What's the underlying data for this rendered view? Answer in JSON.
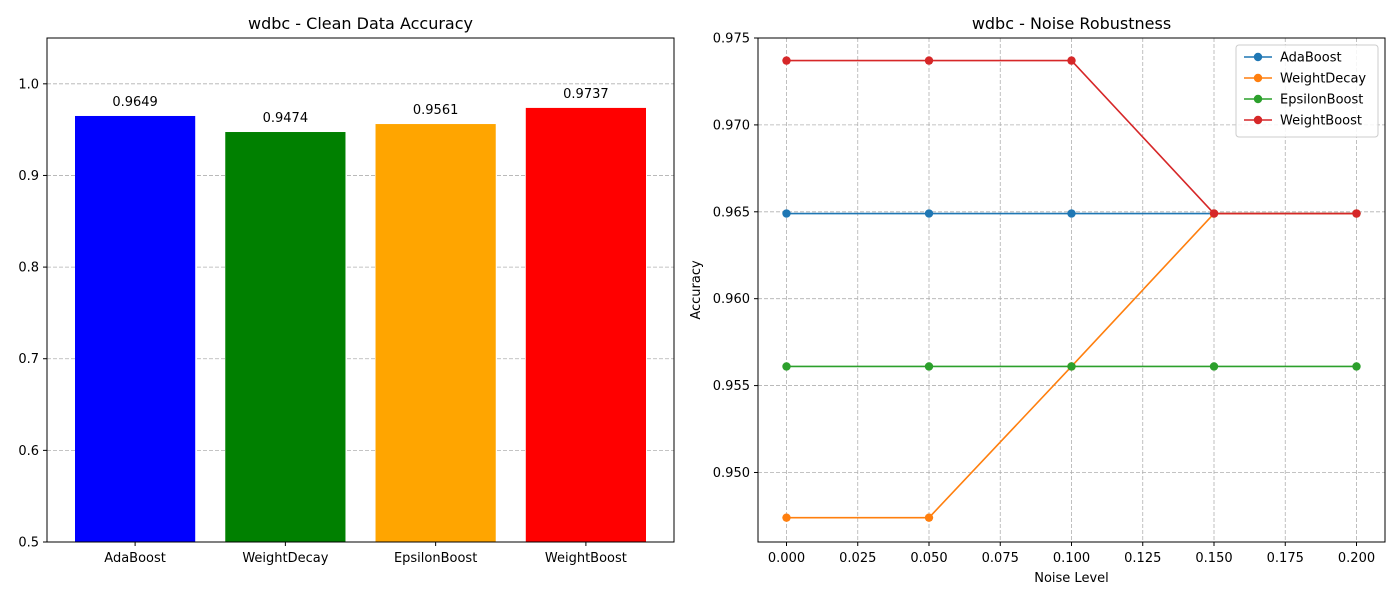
{
  "chart_data": [
    {
      "type": "bar",
      "title": "wdbc - Clean Data Accuracy",
      "xlabel": "",
      "ylabel": "",
      "categories": [
        "AdaBoost",
        "WeightDecay",
        "EpsilonBoost",
        "WeightBoost"
      ],
      "values": [
        0.9649,
        0.9474,
        0.9561,
        0.9737
      ],
      "value_labels": [
        "0.9649",
        "0.9474",
        "0.9561",
        "0.9737"
      ],
      "colors": [
        "#0000ff",
        "#008000",
        "#ffa500",
        "#ff0000"
      ],
      "ylim": [
        0.5,
        1.05
      ],
      "yticks": [
        0.5,
        0.6,
        0.7,
        0.8,
        0.9,
        1.0
      ],
      "ytick_labels": [
        "0.5",
        "0.6",
        "0.7",
        "0.8",
        "0.9",
        "1.0"
      ],
      "grid": "y-dashed"
    },
    {
      "type": "line",
      "title": "wdbc - Noise Robustness",
      "xlabel": "Noise Level",
      "ylabel": "Accuracy",
      "x": [
        0.0,
        0.05,
        0.1,
        0.15,
        0.2
      ],
      "series": [
        {
          "name": "AdaBoost",
          "color": "#1f77b4",
          "values": [
            0.9649,
            0.9649,
            0.9649,
            0.9649,
            0.9649
          ]
        },
        {
          "name": "WeightDecay",
          "color": "#ff7f0e",
          "values": [
            0.9474,
            0.9474,
            0.9561,
            0.9649,
            0.9649
          ]
        },
        {
          "name": "EpsilonBoost",
          "color": "#2ca02c",
          "values": [
            0.9561,
            0.9561,
            0.9561,
            0.9561,
            0.9561
          ]
        },
        {
          "name": "WeightBoost",
          "color": "#d62728",
          "values": [
            0.9737,
            0.9737,
            0.9737,
            0.9649,
            0.9649
          ]
        }
      ],
      "xlim": [
        -0.01,
        0.21
      ],
      "ylim": [
        0.946,
        0.975
      ],
      "xticks": [
        0.0,
        0.025,
        0.05,
        0.075,
        0.1,
        0.125,
        0.15,
        0.175,
        0.2
      ],
      "xtick_labels": [
        "0.000",
        "0.025",
        "0.050",
        "0.075",
        "0.100",
        "0.125",
        "0.150",
        "0.175",
        "0.200"
      ],
      "yticks": [
        0.95,
        0.955,
        0.96,
        0.965,
        0.97,
        0.975
      ],
      "ytick_labels": [
        "0.950",
        "0.955",
        "0.960",
        "0.965",
        "0.970",
        "0.975"
      ],
      "legend": "top-right",
      "grid": "both-dashed"
    }
  ]
}
